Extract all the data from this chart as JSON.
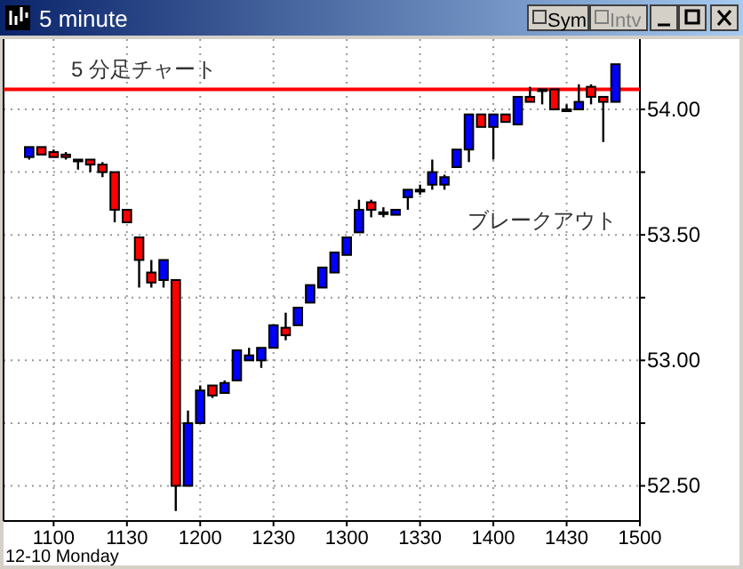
{
  "chart_data": {
    "type": "candlestick",
    "title": "5 minute",
    "annotations": [
      "5 分足チャート",
      "ブレークアウト",
      "12-10 Monday",
      "Sym",
      "Intv"
    ],
    "categories": [
      null,
      null,
      "1100",
      null,
      null,
      null,
      null,
      null,
      "1130",
      null,
      null,
      null,
      null,
      null,
      "1200",
      null,
      null,
      null,
      null,
      null,
      "1230",
      null,
      null,
      null,
      null,
      null,
      "1300",
      null,
      null,
      null,
      null,
      null,
      "1330",
      null,
      null,
      null,
      null,
      null,
      "1400",
      null,
      null,
      null,
      null,
      null,
      "1430",
      null,
      null,
      null,
      null,
      null,
      "1500"
    ],
    "ohlc": [
      [
        53.81,
        53.85,
        53.8,
        53.85
      ],
      [
        53.85,
        53.85,
        53.82,
        53.82
      ],
      [
        53.83,
        53.84,
        53.81,
        53.81
      ],
      [
        53.82,
        53.83,
        53.8,
        53.81
      ],
      [
        53.8,
        53.8,
        53.76,
        53.8
      ],
      [
        53.8,
        53.8,
        53.75,
        53.78
      ],
      [
        53.78,
        53.79,
        53.73,
        53.75
      ],
      [
        53.75,
        53.75,
        53.55,
        53.6
      ],
      [
        53.6,
        53.6,
        53.55,
        53.55
      ],
      [
        53.49,
        53.49,
        53.29,
        53.4
      ],
      [
        53.35,
        53.4,
        53.29,
        53.31
      ],
      [
        53.32,
        53.4,
        53.29,
        53.4
      ],
      [
        53.32,
        53.32,
        52.4,
        52.5
      ],
      [
        52.5,
        52.8,
        52.5,
        52.75
      ],
      [
        52.75,
        52.9,
        52.75,
        52.88
      ],
      [
        52.9,
        52.9,
        52.85,
        52.86
      ],
      [
        52.87,
        52.92,
        52.87,
        52.91
      ],
      [
        52.92,
        53.04,
        52.92,
        53.04
      ],
      [
        53.0,
        53.05,
        53.0,
        53.02
      ],
      [
        53.0,
        53.05,
        52.97,
        53.05
      ],
      [
        53.05,
        53.14,
        53.05,
        53.14
      ],
      [
        53.13,
        53.19,
        53.08,
        53.1
      ],
      [
        53.14,
        53.21,
        53.14,
        53.21
      ],
      [
        53.23,
        53.3,
        53.23,
        53.3
      ],
      [
        53.29,
        53.37,
        53.29,
        53.37
      ],
      [
        53.35,
        53.43,
        53.35,
        53.43
      ],
      [
        53.42,
        53.49,
        53.42,
        53.49
      ],
      [
        53.51,
        53.64,
        53.51,
        53.6
      ],
      [
        53.63,
        53.64,
        53.57,
        53.6
      ],
      [
        53.59,
        53.61,
        53.57,
        53.59
      ],
      [
        53.58,
        53.6,
        53.58,
        53.6
      ],
      [
        53.65,
        53.68,
        53.6,
        53.68
      ],
      [
        53.68,
        53.7,
        53.66,
        53.68
      ],
      [
        53.7,
        53.8,
        53.68,
        53.75
      ],
      [
        53.7,
        53.74,
        53.68,
        53.73
      ],
      [
        53.77,
        53.84,
        53.77,
        53.84
      ],
      [
        53.84,
        53.98,
        53.79,
        53.98
      ],
      [
        53.98,
        53.98,
        53.93,
        53.93
      ],
      [
        53.93,
        53.98,
        53.8,
        53.98
      ],
      [
        53.98,
        53.98,
        53.95,
        53.95
      ],
      [
        53.94,
        54.05,
        53.94,
        54.05
      ],
      [
        54.05,
        54.09,
        54.03,
        54.03
      ],
      [
        54.08,
        54.08,
        54.02,
        54.08
      ],
      [
        54.08,
        54.08,
        54.0,
        54.0
      ],
      [
        54.0,
        54.02,
        54.0,
        54.0
      ],
      [
        54.0,
        54.1,
        54.0,
        54.03
      ],
      [
        54.09,
        54.1,
        54.02,
        54.05
      ],
      [
        54.05,
        54.05,
        53.87,
        54.03
      ],
      [
        54.03,
        54.18,
        54.03,
        54.18
      ],
      null,
      null
    ],
    "colors": [
      "#0000ff",
      "#ff0000",
      "#ff0000",
      "#ff0000",
      "#000000",
      "#ff0000",
      "#ff0000",
      "#ff0000",
      "#ff0000",
      "#ff0000",
      "#ff0000",
      "#0000ff",
      "#ff0000",
      "#0000ff",
      "#0000ff",
      "#ff0000",
      "#0000ff",
      "#0000ff",
      "#0000ff",
      "#0000ff",
      "#0000ff",
      "#ff0000",
      "#0000ff",
      "#0000ff",
      "#0000ff",
      "#0000ff",
      "#0000ff",
      "#0000ff",
      "#ff0000",
      "#000000",
      "#0000ff",
      "#0000ff",
      "#000000",
      "#0000ff",
      "#0000ff",
      "#0000ff",
      "#0000ff",
      "#ff0000",
      "#0000ff",
      "#ff0000",
      "#0000ff",
      "#ff0000",
      "#000000",
      "#ff0000",
      "#000000",
      "#0000ff",
      "#ff0000",
      "#ff0000",
      "#0000ff",
      null,
      null
    ],
    "ylim": [
      52.36,
      54.28
    ],
    "yticks": [
      {
        "value": 52.5,
        "label": "52.50"
      },
      {
        "value": 52.75,
        "label": null
      },
      {
        "value": 53,
        "label": "53.00"
      },
      {
        "value": 53.25,
        "label": null
      },
      {
        "value": 53.5,
        "label": "53.50"
      },
      {
        "value": 53.75,
        "label": null
      },
      {
        "value": 54,
        "label": "54.00"
      }
    ],
    "ref_lines": [
      {
        "axis": "y",
        "value": 54.08,
        "color": "#ff0000"
      }
    ],
    "grid": true
  }
}
